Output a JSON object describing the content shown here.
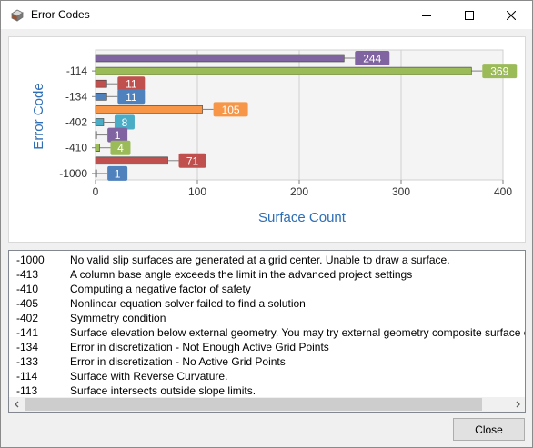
{
  "window": {
    "title": "Error Codes"
  },
  "icons": {
    "app": "error-codes-app-icon",
    "minimize": "minimize-icon",
    "maximize": "maximize-icon",
    "close": "close-icon",
    "scroll_left": "chevron-left-icon",
    "scroll_right": "chevron-right-icon"
  },
  "chart_data": {
    "type": "bar",
    "orientation": "horizontal",
    "xlabel": "Surface Count",
    "ylabel": "Error Code",
    "xlim": [
      0,
      400
    ],
    "xticks": [
      "0",
      "100",
      "200",
      "300",
      "400"
    ],
    "ytick_labels": [
      "-114",
      "-134",
      "-402",
      "-410",
      "-1000"
    ],
    "grid": true,
    "bars": [
      {
        "value": 244,
        "label": "244",
        "color": "#8064a2"
      },
      {
        "value": 369,
        "label": "369",
        "color": "#9bbb59"
      },
      {
        "value": 11,
        "label": "11",
        "color": "#c0504d"
      },
      {
        "value": 11,
        "label": "11",
        "color": "#4f81bd"
      },
      {
        "value": 105,
        "label": "105",
        "color": "#f79646"
      },
      {
        "value": 8,
        "label": "8",
        "color": "#4bacc6"
      },
      {
        "value": 1,
        "label": "1",
        "color": "#8064a2"
      },
      {
        "value": 4,
        "label": "4",
        "color": "#9bbb59"
      },
      {
        "value": 71,
        "label": "71",
        "color": "#c0504d"
      },
      {
        "value": 1,
        "label": "1",
        "color": "#4f81bd"
      }
    ]
  },
  "list": {
    "rows": [
      {
        "code": "-1000",
        "desc": "No valid slip surfaces are generated at a grid center. Unable to draw a surface."
      },
      {
        "code": "-413",
        "desc": "A column base angle exceeds the limit in the advanced project settings"
      },
      {
        "code": "-410",
        "desc": "Computing a negative factor of safety"
      },
      {
        "code": "-405",
        "desc": "Nonlinear equation solver failed to find a solution"
      },
      {
        "code": "-402",
        "desc": "Symmetry condition"
      },
      {
        "code": "-141",
        "desc": "Surface elevation below external geometry. You may try external geometry composite surface c"
      },
      {
        "code": "-134",
        "desc": "Error in discretization - Not Enough Active Grid Points"
      },
      {
        "code": "-133",
        "desc": "Error in discretization - No Active Grid Points"
      },
      {
        "code": "-114",
        "desc": "Surface with Reverse Curvature."
      },
      {
        "code": "-113",
        "desc": "Surface intersects outside slope limits."
      }
    ]
  },
  "buttons": {
    "close": "Close"
  }
}
